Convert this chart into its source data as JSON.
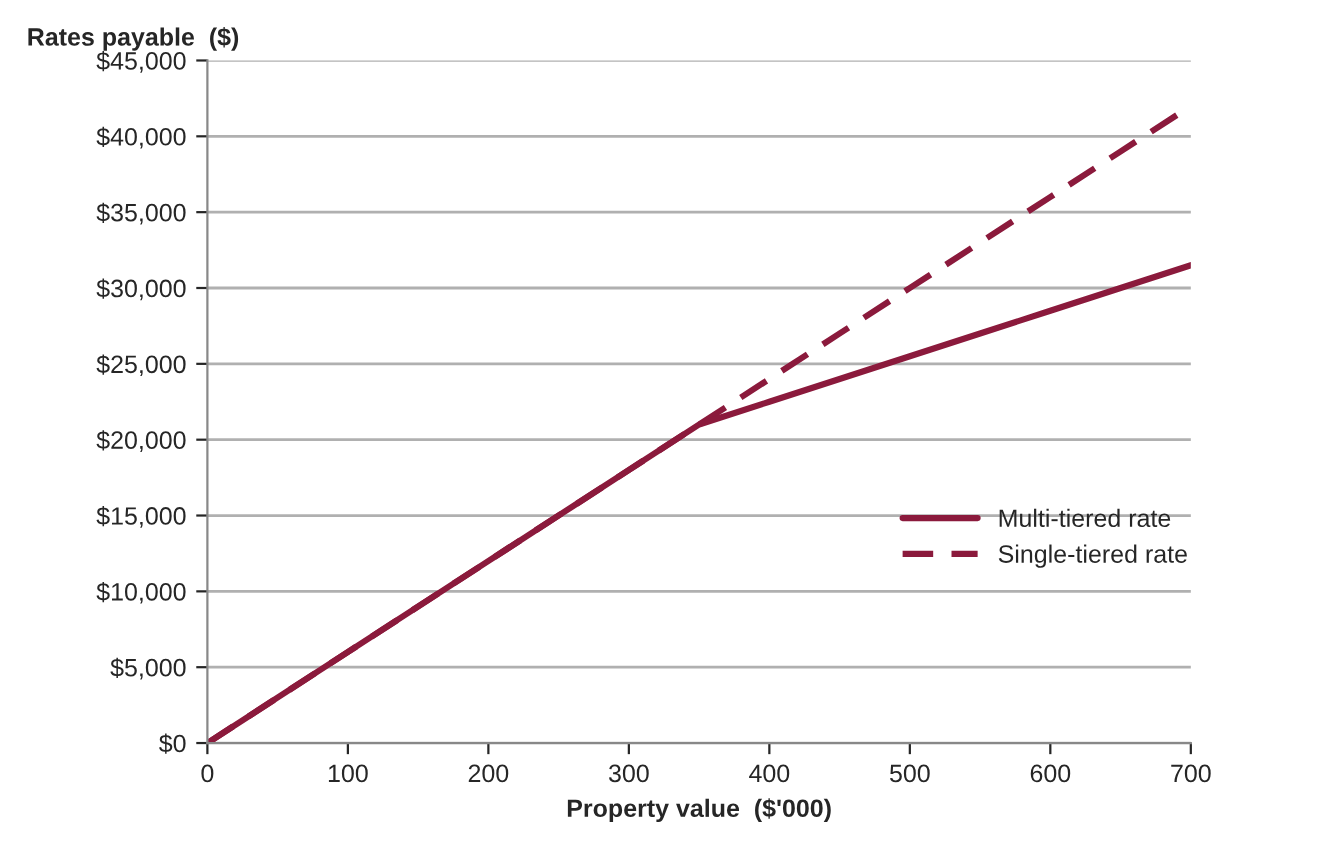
{
  "chart_data": {
    "type": "line",
    "ylabel": "Rates payable  ($)",
    "xlabel": "Property value  ($'000)",
    "x": [
      0,
      50,
      100,
      150,
      200,
      250,
      300,
      350,
      400,
      450,
      500,
      550,
      600,
      650,
      700
    ],
    "series": [
      {
        "name": "Multi-tiered rate",
        "color": "#8b1a3c",
        "line_style": "solid",
        "values": [
          0,
          3000,
          6000,
          9000,
          12000,
          15000,
          18000,
          21000,
          22500,
          24000,
          25500,
          27000,
          28500,
          30000,
          31500
        ]
      },
      {
        "name": "Single-tiered rate",
        "color": "#8b1a3c",
        "line_style": "dashed",
        "values": [
          0,
          3000,
          6000,
          9000,
          12000,
          15000,
          18000,
          21000,
          24000,
          27000,
          30000,
          33000,
          36000,
          39000,
          42000
        ]
      }
    ],
    "xlim": [
      0,
      700
    ],
    "xticks": [
      0,
      100,
      200,
      300,
      400,
      500,
      600,
      700
    ],
    "ylim": [
      0,
      45000
    ],
    "yticks": [
      {
        "value": 0,
        "label": "$0"
      },
      {
        "value": 5000,
        "label": "$5,000"
      },
      {
        "value": 10000,
        "label": "$10,000"
      },
      {
        "value": 15000,
        "label": "$15,000"
      },
      {
        "value": 20000,
        "label": "$20,000"
      },
      {
        "value": 25000,
        "label": "$25,000"
      },
      {
        "value": 30000,
        "label": "$30,000"
      },
      {
        "value": 35000,
        "label": "$35,000"
      },
      {
        "value": 40000,
        "label": "$40,000"
      },
      {
        "value": 45000,
        "label": "$45,000"
      }
    ],
    "grid": "y",
    "legend": "right"
  }
}
